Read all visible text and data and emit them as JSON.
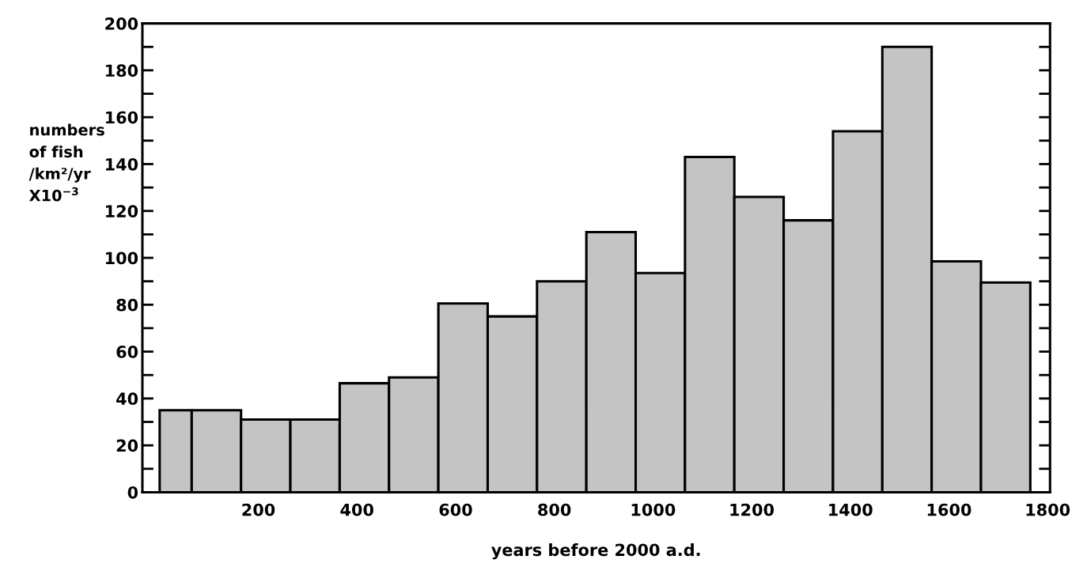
{
  "chart_data": {
    "type": "histogram",
    "xlabel": "years before 2000 a.d.",
    "ylabel": "numbers\nof fish\n/km²/yr\nX10$^{−3}$",
    "bins": [
      0,
      65,
      165,
      265,
      365,
      465,
      565,
      665,
      765,
      865,
      965,
      1065,
      1165,
      1265,
      1365,
      1465,
      1565,
      1665,
      1765
    ],
    "values": [
      35,
      35,
      31,
      31,
      46.5,
      49,
      80.5,
      75,
      90,
      111,
      93.5,
      143,
      126,
      116,
      154,
      190,
      98.5,
      89.5
    ],
    "color": "#c4c4c4",
    "xlim": [
      -35,
      1805
    ],
    "xticks": [
      200,
      400,
      600,
      800,
      1000,
      1200,
      1400,
      1600,
      1800
    ],
    "ylim": [
      0,
      200
    ],
    "yticks": [
      0,
      {
        "value": 10,
        "label": null
      },
      20,
      {
        "value": 30,
        "label": null
      },
      40,
      {
        "value": 50,
        "label": null
      },
      60,
      {
        "value": 70,
        "label": null
      },
      80,
      {
        "value": 90,
        "label": null
      },
      100,
      {
        "value": 110,
        "label": null
      },
      120,
      {
        "value": 130,
        "label": null
      },
      140,
      {
        "value": 150,
        "label": null
      },
      160,
      {
        "value": 170,
        "label": null
      },
      180,
      {
        "value": 190,
        "label": null
      },
      200
    ],
    "grid": false
  }
}
